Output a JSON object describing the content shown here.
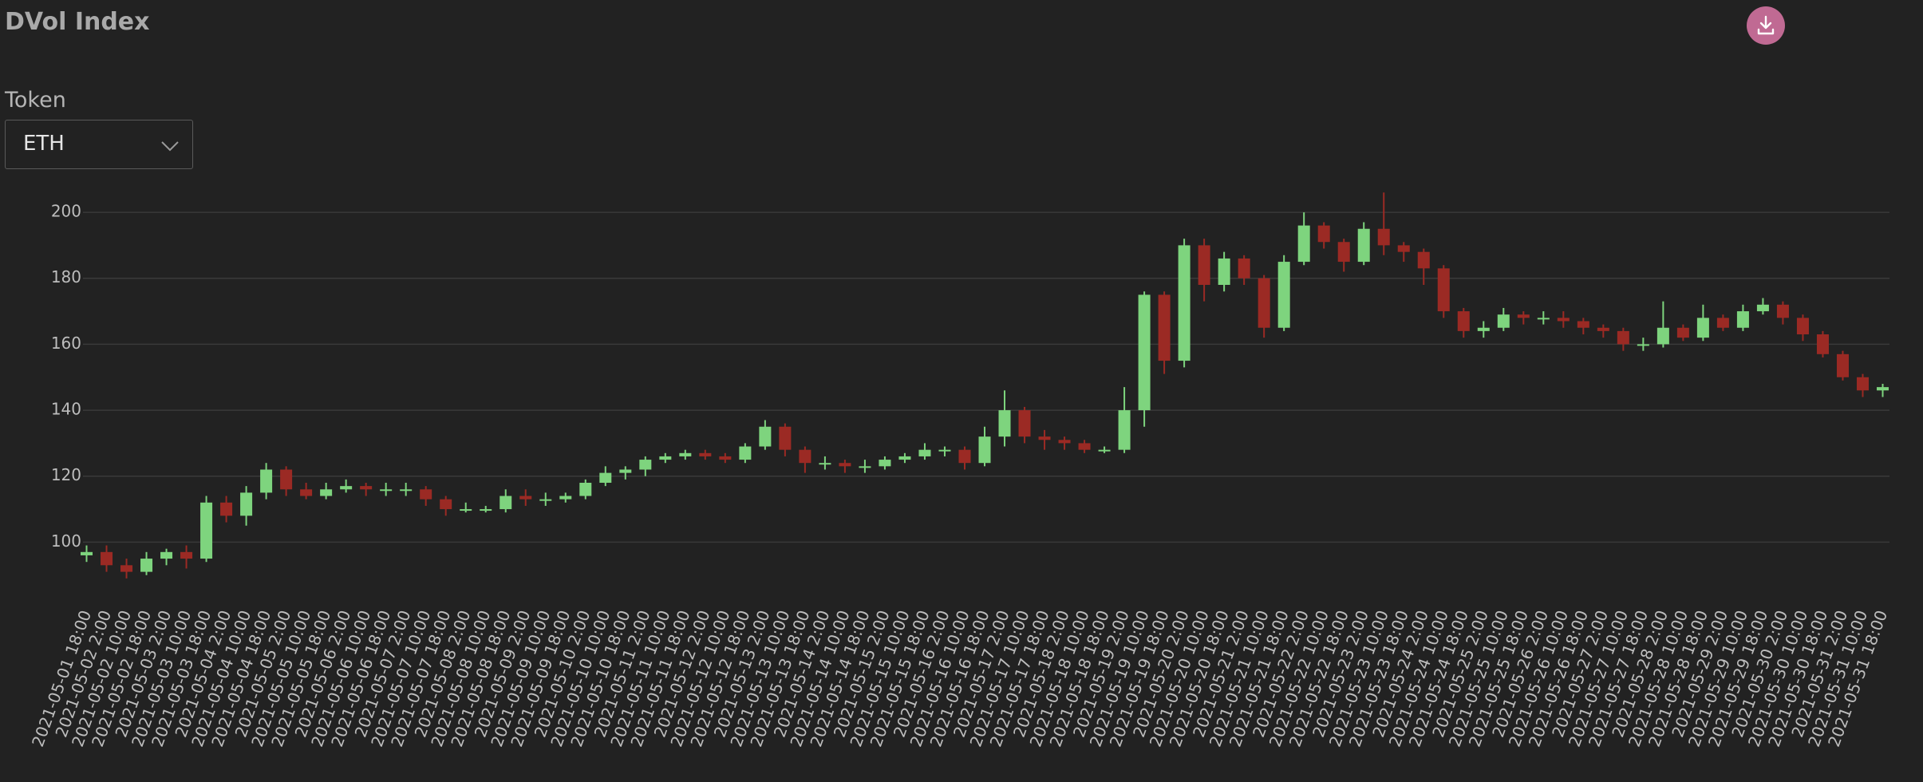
{
  "page": {
    "title": "DVol Index",
    "token_label": "Token",
    "token_value": "ETH"
  },
  "chart_data": {
    "type": "candlestick",
    "categories": [
      "2021-05-01 18:00",
      "2021-05-02 2:00",
      "2021-05-02 10:00",
      "2021-05-02 18:00",
      "2021-05-03 2:00",
      "2021-05-03 10:00",
      "2021-05-03 18:00",
      "2021-05-04 2:00",
      "2021-05-04 10:00",
      "2021-05-04 18:00",
      "2021-05-05 2:00",
      "2021-05-05 10:00",
      "2021-05-05 18:00",
      "2021-05-06 2:00",
      "2021-05-06 10:00",
      "2021-05-06 18:00",
      "2021-05-07 2:00",
      "2021-05-07 10:00",
      "2021-05-07 18:00",
      "2021-05-08 2:00",
      "2021-05-08 10:00",
      "2021-05-08 18:00",
      "2021-05-09 2:00",
      "2021-05-09 10:00",
      "2021-05-09 18:00",
      "2021-05-10 2:00",
      "2021-05-10 10:00",
      "2021-05-10 18:00",
      "2021-05-11 2:00",
      "2021-05-11 10:00",
      "2021-05-11 18:00",
      "2021-05-12 2:00",
      "2021-05-12 10:00",
      "2021-05-12 18:00",
      "2021-05-13 2:00",
      "2021-05-13 10:00",
      "2021-05-13 18:00",
      "2021-05-14 2:00",
      "2021-05-14 10:00",
      "2021-05-14 18:00",
      "2021-05-15 2:00",
      "2021-05-15 10:00",
      "2021-05-15 18:00",
      "2021-05-16 2:00",
      "2021-05-16 10:00",
      "2021-05-16 18:00",
      "2021-05-17 2:00",
      "2021-05-17 10:00",
      "2021-05-17 18:00",
      "2021-05-18 2:00",
      "2021-05-18 10:00",
      "2021-05-18 18:00",
      "2021-05-19 2:00",
      "2021-05-19 10:00",
      "2021-05-19 18:00",
      "2021-05-20 2:00",
      "2021-05-20 10:00",
      "2021-05-20 18:00",
      "2021-05-21 2:00",
      "2021-05-21 10:00",
      "2021-05-21 18:00",
      "2021-05-22 2:00",
      "2021-05-22 10:00",
      "2021-05-22 18:00",
      "2021-05-23 2:00",
      "2021-05-23 10:00",
      "2021-05-23 18:00",
      "2021-05-24 2:00",
      "2021-05-24 10:00",
      "2021-05-24 18:00",
      "2021-05-25 2:00",
      "2021-05-25 10:00",
      "2021-05-25 18:00",
      "2021-05-26 2:00",
      "2021-05-26 10:00",
      "2021-05-26 18:00",
      "2021-05-27 2:00",
      "2021-05-27 10:00",
      "2021-05-27 18:00",
      "2021-05-28 2:00",
      "2021-05-28 10:00",
      "2021-05-28 18:00",
      "2021-05-29 2:00",
      "2021-05-29 10:00",
      "2021-05-29 18:00",
      "2021-05-30 2:00",
      "2021-05-30 10:00",
      "2021-05-30 18:00",
      "2021-05-31 2:00",
      "2021-05-31 10:00",
      "2021-05-31 18:00"
    ],
    "open": [
      96,
      97,
      93,
      91,
      95,
      97,
      95,
      112,
      108,
      115,
      122,
      116,
      114,
      116,
      117,
      116,
      116,
      116,
      113,
      110,
      110,
      110,
      114,
      113,
      113,
      114,
      118,
      121,
      122,
      125,
      126,
      127,
      126,
      125,
      129,
      135,
      128,
      124,
      124,
      123,
      123,
      125,
      126,
      128,
      128,
      124,
      132,
      140,
      132,
      131,
      130,
      128,
      128,
      140,
      175,
      155,
      190,
      178,
      186,
      180,
      165,
      185,
      196,
      191,
      185,
      195,
      190,
      188,
      183,
      170,
      164,
      165,
      169,
      168,
      168,
      167,
      165,
      164,
      160,
      160,
      165,
      162,
      168,
      165,
      170,
      172,
      168,
      163,
      157,
      150,
      146
    ],
    "high": [
      99,
      99,
      95,
      97,
      98,
      99,
      114,
      114,
      117,
      124,
      123,
      118,
      118,
      119,
      118,
      118,
      118,
      117,
      114,
      112,
      111,
      116,
      116,
      115,
      115,
      119,
      123,
      123,
      126,
      127,
      128,
      128,
      127,
      130,
      137,
      136,
      129,
      126,
      125,
      125,
      126,
      127,
      130,
      129,
      129,
      135,
      146,
      141,
      134,
      132,
      131,
      129,
      147,
      176,
      176,
      192,
      192,
      188,
      187,
      181,
      187,
      200,
      197,
      192,
      197,
      206,
      191,
      189,
      184,
      171,
      167,
      171,
      170,
      170,
      170,
      168,
      166,
      165,
      162,
      173,
      166,
      172,
      169,
      172,
      174,
      173,
      169,
      164,
      158,
      151,
      148
    ],
    "low": [
      94,
      91,
      89,
      90,
      93,
      92,
      94,
      106,
      105,
      113,
      114,
      113,
      113,
      115,
      114,
      114,
      114,
      111,
      108,
      109,
      109,
      109,
      111,
      111,
      112,
      113,
      117,
      119,
      120,
      124,
      125,
      125,
      124,
      124,
      128,
      126,
      121,
      122,
      121,
      121,
      122,
      124,
      125,
      126,
      122,
      123,
      129,
      130,
      128,
      128,
      127,
      127,
      127,
      135,
      151,
      153,
      173,
      176,
      178,
      162,
      164,
      184,
      189,
      182,
      184,
      187,
      185,
      178,
      168,
      162,
      162,
      164,
      166,
      166,
      165,
      163,
      162,
      158,
      158,
      159,
      161,
      161,
      164,
      164,
      169,
      166,
      161,
      156,
      149,
      144,
      144
    ],
    "close": [
      97,
      93,
      91,
      95,
      97,
      95,
      112,
      108,
      115,
      122,
      116,
      114,
      116,
      117,
      116,
      116,
      116,
      113,
      110,
      110,
      110,
      114,
      113,
      113,
      114,
      118,
      121,
      122,
      125,
      126,
      127,
      126,
      125,
      129,
      135,
      128,
      124,
      124,
      123,
      123,
      125,
      126,
      128,
      128,
      124,
      132,
      140,
      132,
      131,
      130,
      128,
      128,
      140,
      175,
      155,
      190,
      178,
      186,
      180,
      165,
      185,
      196,
      191,
      185,
      195,
      190,
      188,
      183,
      170,
      164,
      165,
      169,
      168,
      168,
      167,
      165,
      164,
      160,
      160,
      165,
      162,
      168,
      165,
      170,
      172,
      168,
      163,
      157,
      150,
      146,
      147
    ],
    "up_color": "#7ed47e",
    "down_color": "#9b2a24",
    "ylim": [
      88,
      208
    ],
    "yticks": [
      100,
      120,
      140,
      160,
      180,
      200
    ],
    "grid": true
  }
}
